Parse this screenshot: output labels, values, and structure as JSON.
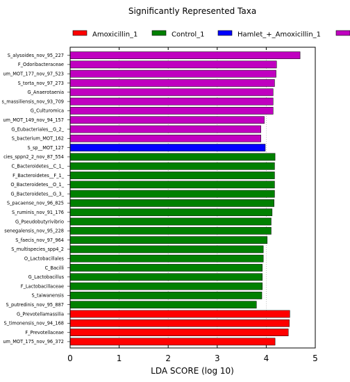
{
  "chart_data": {
    "type": "bar",
    "orientation": "horizontal",
    "title": "Significantly Represented Taxa",
    "xlabel": "LDA SCORE (log 10)",
    "ylabel": "",
    "xlim": [
      0,
      5
    ],
    "xticks": [
      "0",
      "1",
      "2",
      "3",
      "4",
      "5"
    ],
    "grid": "vertical dashed",
    "legend_position": "top",
    "legend": [
      {
        "name": "Amoxicillin_1",
        "color": "#ff0000"
      },
      {
        "name": "Control_1",
        "color": "#008000"
      },
      {
        "name": "Hamlet_+_Amoxicillin_1",
        "color": "#0000ff"
      },
      {
        "name": "",
        "color": "#c000c0"
      }
    ],
    "bars": [
      {
        "label": "S_alysoides_nov_95_227",
        "value": 4.69,
        "group": 3
      },
      {
        "label": "F_Odoribacteraceae",
        "value": 4.21,
        "group": 3
      },
      {
        "label": "um_MOT_177_nov_97_523",
        "value": 4.2,
        "group": 3
      },
      {
        "label": "S_torta_nov_97_273",
        "value": 4.17,
        "group": 3
      },
      {
        "label": "G_Anaerotaenia",
        "value": 4.14,
        "group": 3
      },
      {
        "label": "s_massiliensis_nov_93_709",
        "value": 4.14,
        "group": 3
      },
      {
        "label": "G_Culturomica",
        "value": 4.14,
        "group": 3
      },
      {
        "label": "um_MOT_149_nov_94_157",
        "value": 3.96,
        "group": 3
      },
      {
        "label": "G_Eubacteriales__G_2_",
        "value": 3.89,
        "group": 3
      },
      {
        "label": "S_bacterium_MOT_162",
        "value": 3.89,
        "group": 3
      },
      {
        "label": "S_sp__MOT_127",
        "value": 3.98,
        "group": 2
      },
      {
        "label": "cies_sppn2_2_nov_87_554",
        "value": 4.18,
        "group": 1
      },
      {
        "label": "C_Bacteroidetes__C_1_",
        "value": 4.17,
        "group": 1
      },
      {
        "label": "F_Bacteroidetes__F_1_",
        "value": 4.17,
        "group": 1
      },
      {
        "label": "O_Bacteroidetes__O_1_",
        "value": 4.17,
        "group": 1
      },
      {
        "label": "G_Bacteroidetes__G_3_",
        "value": 4.17,
        "group": 1
      },
      {
        "label": "S_pacaense_nov_96_825",
        "value": 4.16,
        "group": 1
      },
      {
        "label": "S_ruminis_nov_91_176",
        "value": 4.12,
        "group": 1
      },
      {
        "label": "G_Pseudobutyrivibrio",
        "value": 4.1,
        "group": 1
      },
      {
        "label": "senegalensis_nov_95_228",
        "value": 4.1,
        "group": 1
      },
      {
        "label": "S_faecis_nov_97_964",
        "value": 4.02,
        "group": 1
      },
      {
        "label": "S_multispecies_spp4_2",
        "value": 3.94,
        "group": 1
      },
      {
        "label": "O_Lactobacillales",
        "value": 3.94,
        "group": 1
      },
      {
        "label": "C_Bacilli",
        "value": 3.92,
        "group": 1
      },
      {
        "label": "G_Lactobacillus",
        "value": 3.92,
        "group": 1
      },
      {
        "label": "F_Lactobacillaceae",
        "value": 3.92,
        "group": 1
      },
      {
        "label": "S_taiwanensis",
        "value": 3.91,
        "group": 1
      },
      {
        "label": "S_putredinis_nov_95_887",
        "value": 3.8,
        "group": 1
      },
      {
        "label": "G_Prevotellamassilia",
        "value": 4.48,
        "group": 0
      },
      {
        "label": "S_timonensis_nov_94_168",
        "value": 4.47,
        "group": 0
      },
      {
        "label": "F_Prevotellaceae",
        "value": 4.45,
        "group": 0
      },
      {
        "label": "um_MOT_175_nov_96_372",
        "value": 4.18,
        "group": 0
      }
    ]
  }
}
